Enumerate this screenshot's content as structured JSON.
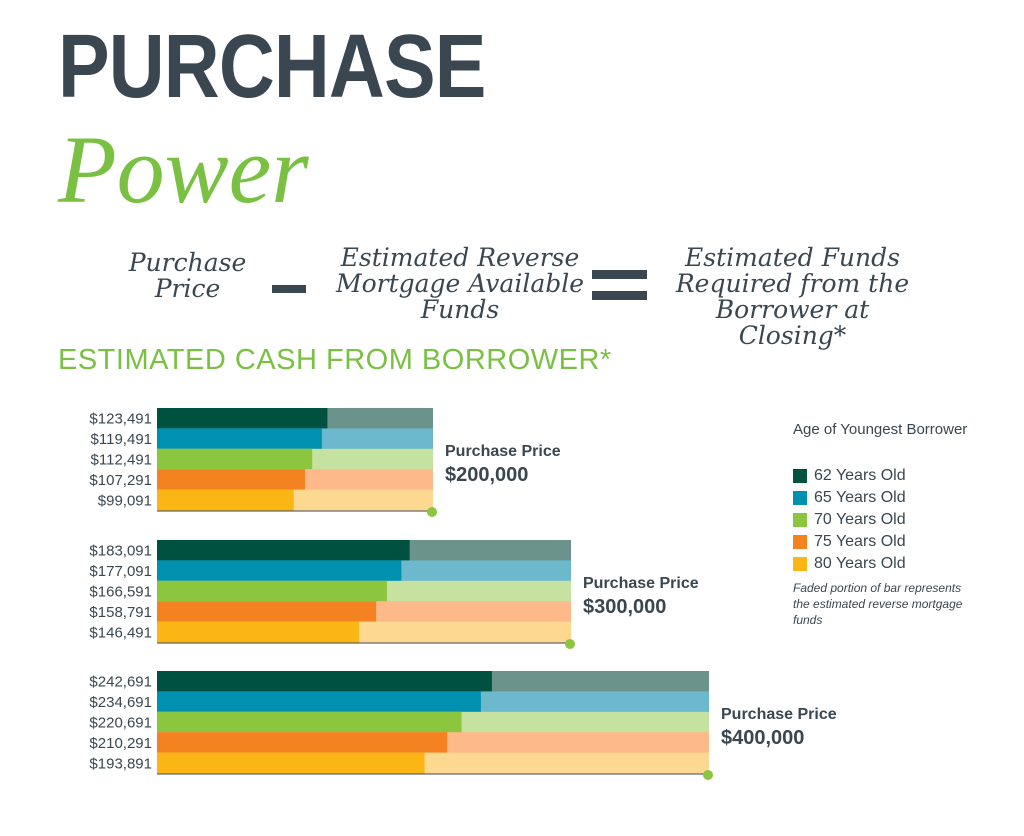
{
  "header": {
    "title_line1": "PURCHASE",
    "title_line2": "Power"
  },
  "equation": {
    "term1": "Purchase\nPrice",
    "term2": "Estimated Reverse\nMortgage Available\nFunds",
    "result": "Estimated Funds\nRequired from the\nBorrower at Closing*"
  },
  "section_title": "ESTIMATED CASH FROM BORROWER*",
  "legend": {
    "title": "Age of Youngest Borrower",
    "note": "Faded portion of bar represents the estimated reverse mortgage funds",
    "items": [
      {
        "label": "62 Years Old",
        "color": "#00513f"
      },
      {
        "label": "65 Years Old",
        "color": "#0090b0"
      },
      {
        "label": "70 Years Old",
        "color": "#8cc63f"
      },
      {
        "label": "75 Years Old",
        "color": "#f58220"
      },
      {
        "label": "80 Years Old",
        "color": "#fbb616"
      }
    ],
    "faded_colors": [
      "#6b938c",
      "#6cb8cc",
      "#c6e2a0",
      "#fdb98a",
      "#fdd890"
    ],
    "dot_color": "#8cc63f"
  },
  "chart_data": {
    "type": "bar",
    "orientation": "horizontal-stacked",
    "series_names": [
      "62 Years Old",
      "65 Years Old",
      "70 Years Old",
      "75 Years Old",
      "80 Years Old"
    ],
    "groups": [
      {
        "price_label": "Purchase Price",
        "price": 200000,
        "price_text": "$200,000",
        "value_labels": [
          "$123,491",
          "$119,491",
          "$112,491",
          "$107,291",
          "$99,091"
        ],
        "values": [
          123491,
          119491,
          112491,
          107291,
          99091
        ]
      },
      {
        "price_label": "Purchase Price",
        "price": 300000,
        "price_text": "$300,000",
        "value_labels": [
          "$183,091",
          "$177,091",
          "$166,591",
          "$158,791",
          "$146,491"
        ],
        "values": [
          183091,
          177091,
          166591,
          158791,
          146491
        ]
      },
      {
        "price_label": "Purchase Price",
        "price": 400000,
        "price_text": "$400,000",
        "value_labels": [
          "$242,691",
          "$234,691",
          "$220,691",
          "$210,291",
          "$193,891"
        ],
        "values": [
          242691,
          234691,
          220691,
          210291,
          193891
        ]
      }
    ]
  }
}
